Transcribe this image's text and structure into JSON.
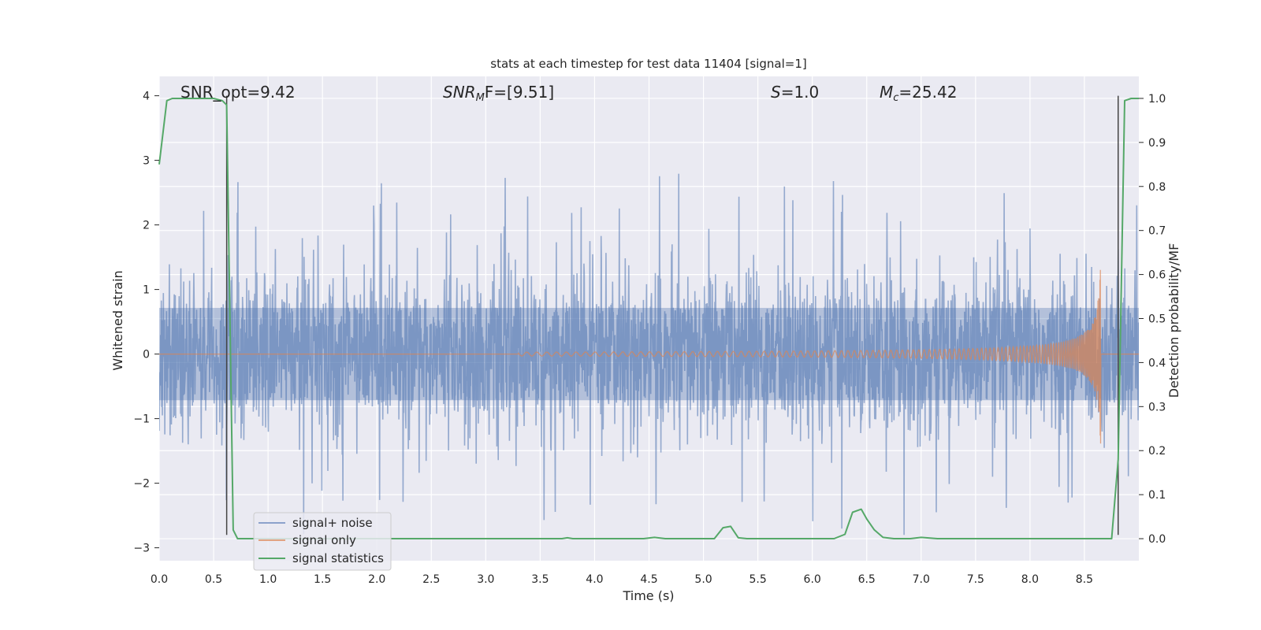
{
  "chart_data": {
    "type": "line",
    "title": "stats at each timestep for test data 11404 [signal=1]",
    "xlabel": "Time (s)",
    "ylabel_left": "Whitened strain",
    "ylabel_right": "Detection probability/MF",
    "xlim": [
      0.0,
      9.0
    ],
    "ylim_left": [
      -3.2,
      4.3
    ],
    "ylim_right": [
      -0.05,
      1.05
    ],
    "x_ticks": [
      "0.0",
      "0.5",
      "1.0",
      "1.5",
      "2.0",
      "2.5",
      "3.0",
      "3.5",
      "4.0",
      "4.5",
      "5.0",
      "5.5",
      "6.0",
      "6.5",
      "7.0",
      "7.5",
      "8.0",
      "8.5"
    ],
    "y_ticks_left": [
      "4",
      "3",
      "2",
      "1",
      "0",
      "−1",
      "−2",
      "−3"
    ],
    "y_ticks_right": [
      "1.0",
      "0.9",
      "0.8",
      "0.7",
      "0.6",
      "0.5",
      "0.4",
      "0.3",
      "0.2",
      "0.1",
      "0.0"
    ],
    "grid": true,
    "legend_position": "lower-left",
    "colors": {
      "background": "#eaeaf2",
      "grid": "#ffffff",
      "noise": "#4c72b0",
      "signal": "#dd8452",
      "statistics": "#55a868",
      "marker": "#444444"
    },
    "annotations": {
      "snr_opt": "SNR_opt=9.42",
      "snr_mf_main": "SNR",
      "snr_mf_sub": "M",
      "snr_mf_tail": "F=[9.51]",
      "s_main": "S",
      "s_tail": "=1.0",
      "mc_main": "M",
      "mc_sub": "c",
      "mc_tail": "=25.42"
    },
    "vertical_markers_x": [
      0.62,
      8.81
    ],
    "series": [
      {
        "name": "signal+ noise",
        "envelope_abs": 1.3,
        "max_value": 4.0,
        "min_value": -2.8
      },
      {
        "name": "signal only",
        "chirp_start_x": 3.8,
        "peak_x": 8.65,
        "peak_amplitude": 1.5
      },
      {
        "name": "signal statistics",
        "axis": "right",
        "x": [
          0.0,
          0.07,
          0.12,
          0.5,
          0.58,
          0.62,
          0.68,
          0.72,
          0.8,
          3.7,
          3.75,
          3.8,
          4.45,
          4.55,
          4.65,
          5.1,
          5.18,
          5.25,
          5.32,
          5.4,
          6.2,
          6.3,
          6.37,
          6.45,
          6.5,
          6.57,
          6.65,
          6.75,
          6.9,
          7.0,
          7.15,
          7.3,
          8.75,
          8.81,
          8.87,
          8.93,
          9.0
        ],
        "values": [
          0.85,
          0.995,
          1.0,
          1.0,
          0.995,
          0.985,
          0.02,
          0.0,
          0.0,
          0.0,
          0.002,
          0.0,
          0.0,
          0.003,
          0.0,
          0.0,
          0.025,
          0.028,
          0.002,
          0.0,
          0.0,
          0.01,
          0.06,
          0.067,
          0.045,
          0.02,
          0.003,
          0.0,
          0.0,
          0.003,
          0.0,
          0.0,
          0.0,
          0.18,
          0.995,
          1.0,
          1.0
        ]
      }
    ]
  }
}
